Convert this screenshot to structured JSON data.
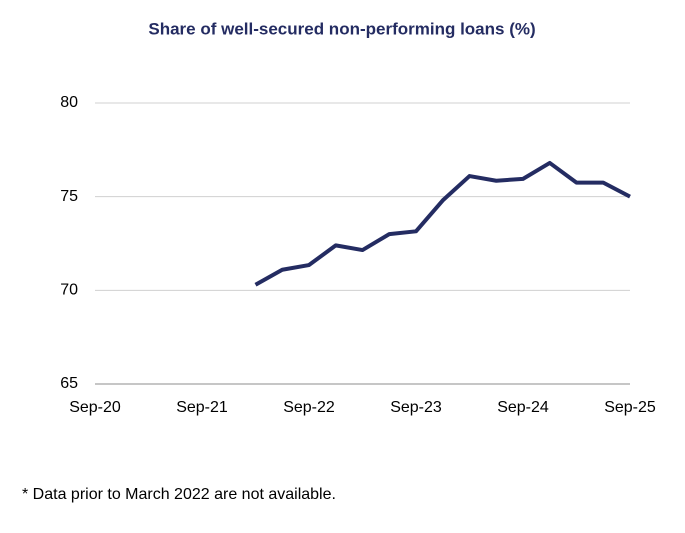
{
  "chart_data": {
    "type": "line",
    "title": "Share of well-secured non-performing loans (%)",
    "categories": [
      "Sep-20",
      null,
      null,
      null,
      "Sep-21",
      null,
      null,
      null,
      "Sep-22",
      null,
      null,
      null,
      "Sep-23",
      null,
      null,
      null,
      "Sep-24",
      null,
      null,
      null,
      "Sep-25"
    ],
    "series": [
      {
        "name": "Share of well-secured non-performing loans",
        "color": "#242c62",
        "values": [
          null,
          null,
          null,
          null,
          null,
          null,
          70.3,
          71.1,
          71.35,
          72.4,
          72.15,
          73.0,
          73.15,
          74.8,
          76.1,
          75.85,
          75.95,
          76.8,
          75.75,
          75.75,
          75.0
        ]
      }
    ],
    "ylim": [
      65,
      80
    ],
    "yticks": [
      65,
      70,
      75,
      80
    ],
    "grid": true,
    "footnote": "* Data prior to March 2022 are not available."
  }
}
